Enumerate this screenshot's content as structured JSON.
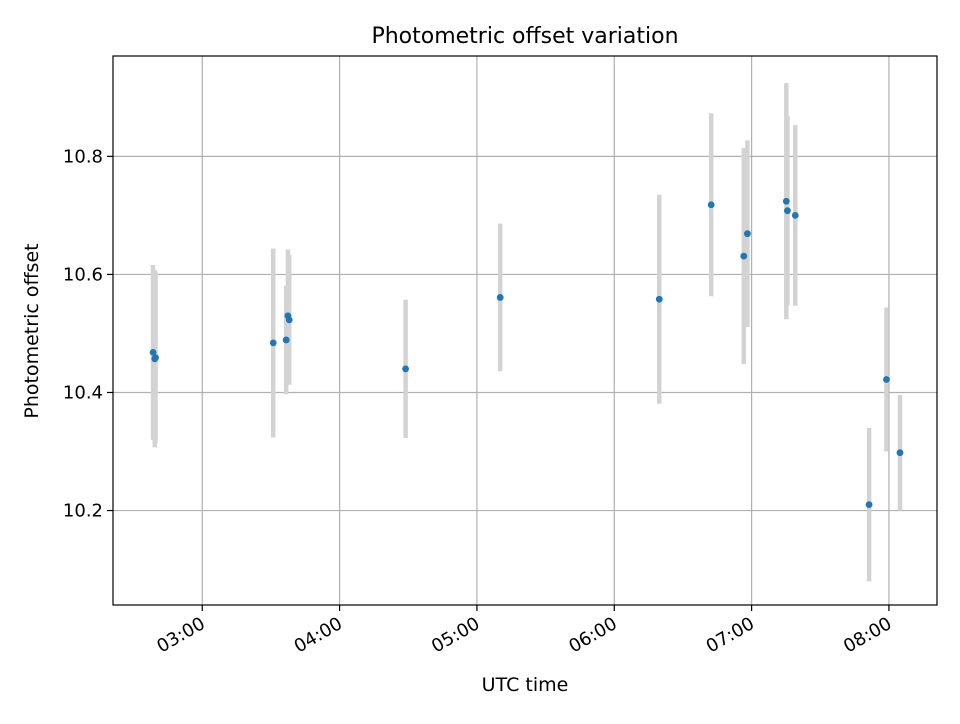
{
  "chart_data": {
    "type": "scatter",
    "title": "Photometric offset variation",
    "xlabel": "UTC time",
    "ylabel": "Photometric offset",
    "x_tick_labels": [
      "03:00",
      "04:00",
      "05:00",
      "06:00",
      "07:00",
      "08:00"
    ],
    "x_ticks": [
      "03:00",
      "04:00",
      "05:00",
      "06:00",
      "07:00",
      "08:00"
    ],
    "y_ticks": [
      10.2,
      10.4,
      10.6,
      10.8
    ],
    "y_tick_labels": [
      "10.2",
      "10.4",
      "10.6",
      "10.8"
    ],
    "xlim": [
      "02:21",
      "08:21"
    ],
    "ylim": [
      10.04,
      10.97
    ],
    "grid": true,
    "colors": {
      "points": "#1f77b4",
      "error_bars": "#d3d3d3",
      "grid": "#b0b0b0"
    },
    "series": [
      {
        "points": [
          {
            "x": "02:38:30",
            "y": 10.468,
            "err": 0.148
          },
          {
            "x": "02:39:15",
            "y": 10.457,
            "err": 0.15
          },
          {
            "x": "02:39:35",
            "y": 10.459,
            "err": 0.145
          },
          {
            "x": "03:31:00",
            "y": 10.484,
            "err": 0.16
          },
          {
            "x": "03:36:40",
            "y": 10.489,
            "err": 0.092
          },
          {
            "x": "03:37:25",
            "y": 10.53,
            "err": 0.112
          },
          {
            "x": "03:38:00",
            "y": 10.523,
            "err": 0.11
          },
          {
            "x": "04:28:50",
            "y": 10.44,
            "err": 0.117
          },
          {
            "x": "05:10:10",
            "y": 10.561,
            "err": 0.125
          },
          {
            "x": "06:19:40",
            "y": 10.558,
            "err": 0.177
          },
          {
            "x": "06:42:20",
            "y": 10.718,
            "err": 0.155
          },
          {
            "x": "06:56:35",
            "y": 10.631,
            "err": 0.183
          },
          {
            "x": "06:58:10",
            "y": 10.669,
            "err": 0.158
          },
          {
            "x": "07:15:10",
            "y": 10.724,
            "err": 0.2
          },
          {
            "x": "07:15:40",
            "y": 10.708,
            "err": 0.16
          },
          {
            "x": "07:19:05",
            "y": 10.7,
            "err": 0.153
          },
          {
            "x": "07:51:20",
            "y": 10.21,
            "err": 0.13
          },
          {
            "x": "07:58:55",
            "y": 10.422,
            "err": 0.122
          },
          {
            "x": "08:04:50",
            "y": 10.298,
            "err": 0.098
          }
        ]
      }
    ]
  }
}
